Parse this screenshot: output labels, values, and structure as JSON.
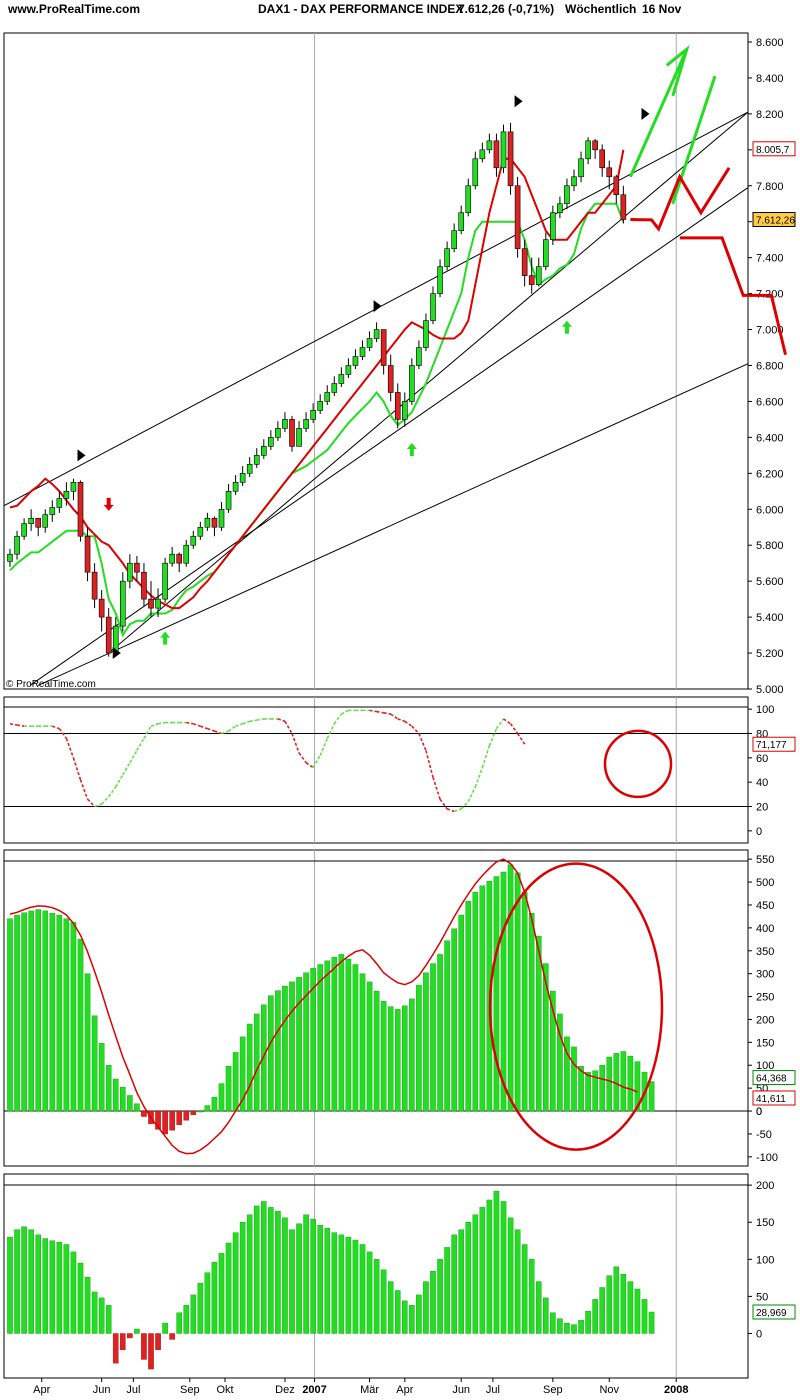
{
  "header": {
    "site": "www.ProRealTime.com",
    "instrument": "DAX1 - DAX PERFORMANCE INDEX",
    "quote": "7.612,26 (-0,71%)",
    "period": "Wöchentlich",
    "date": "16 Nov"
  },
  "watermark": "© ProRealTime.com",
  "x_axis": {
    "labels": [
      "Apr",
      "Jun",
      "Jul",
      "Sep",
      "Okt",
      "Dez",
      "2007",
      "Mär",
      "Apr",
      "Jun",
      "Jul",
      "Sep",
      "Nov",
      "2008"
    ],
    "bold": [
      "2007",
      "2008"
    ]
  },
  "colors": {
    "up": "#22dd22",
    "down": "#dd2222",
    "green": "#00cc00",
    "red": "#dd0000",
    "tag_orange": "#ffcc44"
  },
  "chart_data": [
    {
      "type": "candlestick",
      "name": "price",
      "y_ticks": [
        "8.600",
        "8.400",
        "8.200",
        "8.000",
        "7.800",
        "7.600",
        "7.400",
        "7.200",
        "7.000",
        "6.800",
        "6.600",
        "6.400",
        "6.200",
        "6.000",
        "5.800",
        "5.600",
        "5.400",
        "5.200",
        "5.000"
      ],
      "ylim": [
        5000,
        8650
      ],
      "last_value_labels": [
        "8.005,7",
        "7.612,26"
      ],
      "close": [
        5750,
        5850,
        5920,
        5950,
        5900,
        5970,
        6010,
        6060,
        6100,
        6150,
        5850,
        5650,
        5500,
        5400,
        5200,
        5350,
        5600,
        5700,
        5650,
        5500,
        5450,
        5500,
        5700,
        5750,
        5700,
        5800,
        5850,
        5900,
        5950,
        5900,
        6000,
        6100,
        6150,
        6200,
        6250,
        6300,
        6350,
        6400,
        6450,
        6500,
        6350,
        6450,
        6500,
        6550,
        6600,
        6650,
        6700,
        6750,
        6800,
        6850,
        6900,
        6950,
        7000,
        6800,
        6650,
        6500,
        6600,
        6800,
        6900,
        7050,
        7200,
        7350,
        7450,
        7550,
        7650,
        7800,
        7950,
        8000,
        8050,
        7900,
        8100,
        7800,
        7450,
        7300,
        7250,
        7350,
        7500,
        7650,
        7700,
        7800,
        7850,
        7950,
        8050,
        8000,
        7900,
        7850,
        7750,
        7612.26
      ],
      "high": [
        5780,
        5880,
        5950,
        6000,
        5950,
        6000,
        6050,
        6100,
        6150,
        6170,
        6160,
        5900,
        5700,
        5550,
        5450,
        5400,
        5650,
        5750,
        5740,
        5700,
        5600,
        5560,
        5730,
        5790,
        5760,
        5830,
        5880,
        5930,
        5980,
        5960,
        6040,
        6140,
        6190,
        6240,
        6290,
        6340,
        6390,
        6440,
        6490,
        6540,
        6520,
        6490,
        6540,
        6590,
        6640,
        6690,
        6740,
        6790,
        6840,
        6890,
        6940,
        6990,
        7040,
        6950,
        6860,
        6700,
        6650,
        6840,
        6940,
        7090,
        7240,
        7390,
        7490,
        7590,
        7690,
        7840,
        7990,
        8040,
        8090,
        8090,
        8140,
        8150,
        7850,
        7500,
        7400,
        7400,
        7540,
        7690,
        7740,
        7840,
        7890,
        7990,
        8070,
        8060,
        8030,
        7940,
        7860,
        7800
      ],
      "low": [
        5680,
        5720,
        5830,
        5880,
        5850,
        5870,
        5930,
        5980,
        6020,
        6050,
        5820,
        5600,
        5450,
        5320,
        5180,
        5200,
        5320,
        5560,
        5600,
        5460,
        5400,
        5400,
        5480,
        5680,
        5650,
        5680,
        5780,
        5830,
        5880,
        5850,
        5880,
        5980,
        6080,
        6130,
        6180,
        6230,
        6280,
        6330,
        6380,
        6430,
        6320,
        6350,
        6430,
        6480,
        6530,
        6580,
        6630,
        6680,
        6730,
        6780,
        6830,
        6880,
        6930,
        6750,
        6600,
        6450,
        6460,
        6580,
        6780,
        6880,
        7030,
        7180,
        7330,
        7430,
        7530,
        7630,
        7780,
        7930,
        7980,
        7850,
        7870,
        7750,
        7400,
        7240,
        7200,
        7240,
        7330,
        7470,
        7620,
        7670,
        7770,
        7820,
        7920,
        7950,
        7850,
        7780,
        7700,
        7590
      ],
      "trend_support": [
        5660,
        5700,
        5730,
        5760,
        5760,
        5790,
        5820,
        5850,
        5880,
        5880,
        5880,
        5850,
        5850,
        5700,
        5500,
        5420,
        5300,
        5360,
        5380,
        5380,
        5420,
        5420,
        5420,
        5440,
        5500,
        5550,
        5570,
        5600,
        5630,
        5650,
        5700,
        5750,
        5800,
        5850,
        5900,
        5950,
        6000,
        6050,
        6100,
        6150,
        6200,
        6220,
        6240,
        6270,
        6300,
        6330,
        6380,
        6430,
        6480,
        6520,
        6560,
        6600,
        6650,
        6600,
        6520,
        6470,
        6500,
        6540,
        6620,
        6700,
        6800,
        6900,
        7000,
        7100,
        7200,
        7400,
        7550,
        7600,
        7600,
        7600,
        7600,
        7600,
        7600,
        7500,
        7350,
        7250,
        7280,
        7300,
        7340,
        7360,
        7420,
        7560,
        7650,
        7700,
        7700,
        7700,
        7700,
        7600
      ],
      "trend_resistance": [
        6010,
        6020,
        6060,
        6100,
        6130,
        6170,
        6140,
        6100,
        6050,
        6000,
        5960,
        5900,
        5860,
        5820,
        5800,
        5750,
        5700,
        5640,
        5600,
        5560,
        5520,
        5490,
        5470,
        5450,
        5450,
        5480,
        5510,
        5560,
        5600,
        5650,
        5700,
        5750,
        5800,
        5850,
        5900,
        5950,
        6000,
        6050,
        6100,
        6150,
        6200,
        6250,
        6300,
        6350,
        6400,
        6450,
        6500,
        6550,
        6600,
        6650,
        6700,
        6750,
        6800,
        6850,
        6900,
        6950,
        7000,
        7040,
        7020,
        7000,
        6970,
        6950,
        6950,
        6950,
        6980,
        7050,
        7250,
        7450,
        7650,
        7800,
        7950,
        7950,
        7900,
        7850,
        7750,
        7650,
        7550,
        7500,
        7500,
        7500,
        7550,
        7600,
        7650,
        7650,
        7700,
        7750,
        7800,
        8000
      ],
      "signals": [
        {
          "kind": "top",
          "index": 10,
          "value": 6300
        },
        {
          "kind": "sell",
          "index": 14,
          "value": 6030
        },
        {
          "kind": "bottom",
          "index": 15,
          "value": 5200
        },
        {
          "kind": "buy",
          "index": 22,
          "value": 5280
        },
        {
          "kind": "top",
          "index": 52,
          "value": 7130
        },
        {
          "kind": "buy",
          "index": 57,
          "value": 6330
        },
        {
          "kind": "top",
          "index": 72,
          "value": 8270
        },
        {
          "kind": "buy",
          "index": 79,
          "value": 7010
        },
        {
          "kind": "top",
          "index": 90,
          "value": 8200
        }
      ],
      "projection_up": [
        [
          88,
          7850
        ],
        [
          96,
          8560
        ],
        [
          94,
          7700
        ],
        [
          100,
          8410
        ]
      ],
      "projection_down": [
        [
          88,
          7612
        ],
        [
          91,
          7610
        ],
        [
          92,
          7560
        ],
        [
          95,
          7850
        ],
        [
          98,
          7650
        ],
        [
          102,
          7900
        ]
      ],
      "projection_steps": [
        [
          95,
          7510
        ],
        [
          101,
          7510
        ],
        [
          104,
          7190
        ],
        [
          108,
          7190
        ],
        [
          110,
          6860
        ]
      ]
    },
    {
      "type": "line",
      "name": "stochastic",
      "y_ticks": [
        "100",
        "80",
        "60",
        "40",
        "20",
        "0"
      ],
      "ylim": [
        -10,
        110
      ],
      "reference_lines": [
        80,
        20
      ],
      "last_value_label": "71,177",
      "values": [
        88,
        87,
        86,
        86,
        86,
        86,
        86,
        84,
        76,
        60,
        42,
        26,
        20,
        22,
        28,
        36,
        46,
        56,
        66,
        76,
        86,
        88,
        89,
        89,
        89,
        89,
        88,
        86,
        84,
        82,
        80,
        82,
        86,
        88,
        90,
        91,
        92,
        92,
        92,
        90,
        80,
        64,
        56,
        52,
        62,
        76,
        88,
        96,
        99,
        99,
        99,
        99,
        98,
        97,
        96,
        92,
        90,
        86,
        80,
        66,
        44,
        26,
        18,
        16,
        18,
        24,
        36,
        52,
        70,
        84,
        92,
        88,
        80,
        71.177
      ]
    },
    {
      "type": "bar",
      "name": "macd_histogram",
      "y_ticks": [
        "550",
        "500",
        "450",
        "400",
        "350",
        "300",
        "250",
        "200",
        "150",
        "100",
        "50",
        "0",
        "-50",
        "-100"
      ],
      "ylim": [
        -120,
        570
      ],
      "last_value_labels": [
        "64,368",
        "41,611",
        "0"
      ],
      "values": [
        420,
        428,
        433,
        437,
        440,
        437,
        432,
        428,
        420,
        412,
        375,
        300,
        208,
        148,
        100,
        70,
        52,
        34,
        16,
        -12,
        -28,
        -40,
        -50,
        -42,
        -30,
        -20,
        -8,
        0,
        12,
        30,
        60,
        98,
        128,
        162,
        190,
        212,
        232,
        252,
        263,
        273,
        282,
        292,
        302,
        312,
        320,
        328,
        336,
        342,
        332,
        320,
        300,
        282,
        262,
        240,
        228,
        222,
        230,
        245,
        275,
        302,
        322,
        342,
        372,
        398,
        428,
        458,
        478,
        492,
        502,
        512,
        522,
        538,
        520,
        478,
        432,
        382,
        322,
        262,
        212,
        162,
        140,
        98,
        85,
        88,
        100,
        118,
        126,
        130,
        120,
        108,
        85,
        64.368
      ],
      "signal_line": [
        430,
        434,
        440,
        445,
        448,
        447,
        444,
        438,
        428,
        410,
        384,
        348,
        305,
        260,
        210,
        163,
        118,
        80,
        40,
        10,
        -15,
        -35,
        -55,
        -75,
        -88,
        -93,
        -92,
        -85,
        -74,
        -60,
        -45,
        -25,
        0,
        25,
        55,
        90,
        120,
        150,
        175,
        198,
        218,
        236,
        252,
        268,
        284,
        298,
        312,
        326,
        338,
        348,
        352,
        340,
        322,
        302,
        290,
        280,
        276,
        282,
        296,
        318,
        342,
        368,
        396,
        424,
        450,
        474,
        496,
        514,
        530,
        544,
        550,
        540,
        520,
        478,
        420,
        350,
        280,
        220,
        166,
        126,
        102,
        88,
        78,
        74,
        70,
        66,
        60,
        52,
        48,
        41.611
      ]
    },
    {
      "type": "bar",
      "name": "momentum",
      "y_ticks": [
        "200",
        "150",
        "100",
        "50",
        "0"
      ],
      "ylim": [
        -60,
        215
      ],
      "last_value_label": "28,969",
      "values": [
        130,
        140,
        144,
        140,
        133,
        128,
        125,
        123,
        120,
        110,
        95,
        76,
        56,
        48,
        38,
        -40,
        -22,
        -6,
        6,
        -35,
        -48,
        -22,
        14,
        -8,
        28,
        38,
        52,
        68,
        82,
        96,
        108,
        122,
        136,
        150,
        160,
        172,
        178,
        170,
        165,
        156,
        140,
        148,
        160,
        154,
        146,
        142,
        136,
        133,
        130,
        126,
        120,
        110,
        100,
        86,
        70,
        58,
        44,
        38,
        52,
        70,
        84,
        100,
        116,
        133,
        140,
        150,
        160,
        170,
        180,
        192,
        178,
        156,
        140,
        120,
        100,
        70,
        48,
        28,
        20,
        14,
        12,
        18,
        30,
        46,
        62,
        78,
        90,
        80,
        70,
        60,
        46,
        28.969
      ]
    }
  ]
}
